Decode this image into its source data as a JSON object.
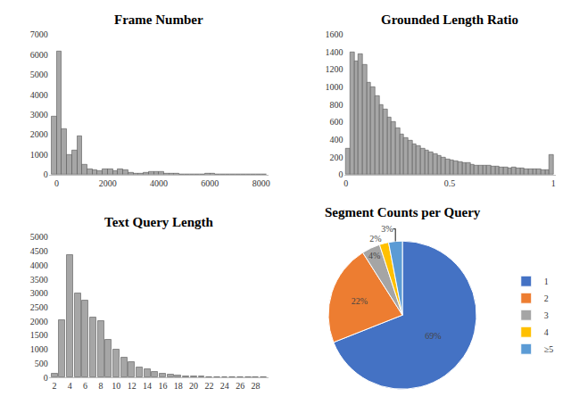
{
  "chart_data": [
    {
      "type": "histogram",
      "title": "Frame Number",
      "bins": [
        -200,
        0,
        200,
        400,
        600,
        800,
        1000,
        1200,
        1400,
        1600,
        1800,
        2000,
        2200,
        2400,
        2600,
        2800,
        3000,
        3200,
        3400,
        3600,
        3800,
        4000,
        4200,
        4400,
        4600,
        4800,
        5000,
        5200,
        5400,
        5600,
        5800,
        6000,
        6200,
        6400,
        6600,
        6800,
        7000,
        7200,
        7400,
        7600,
        7800,
        8000,
        8200
      ],
      "values": [
        2900,
        6150,
        2300,
        1000,
        1200,
        1950,
        500,
        300,
        250,
        200,
        280,
        260,
        180,
        280,
        220,
        100,
        80,
        60,
        100,
        150,
        160,
        130,
        70,
        40,
        50,
        20,
        20,
        10,
        10,
        10,
        50,
        40,
        10,
        20,
        30,
        10,
        10,
        10,
        10,
        10,
        20,
        30
      ],
      "color": "#a6a6a6",
      "xlim": [
        -300,
        8300
      ],
      "xticks": [
        0,
        2000,
        4000,
        6000,
        8000
      ],
      "ylim": [
        0,
        7000
      ],
      "yticks": [
        0,
        1000,
        2000,
        3000,
        4000,
        5000,
        6000,
        7000
      ],
      "grid": false
    },
    {
      "type": "histogram",
      "title": "Grounded Length Ratio",
      "bins": [
        0,
        0.02,
        0.04,
        0.06,
        0.08,
        0.1,
        0.12,
        0.14,
        0.16,
        0.18,
        0.2,
        0.22,
        0.24,
        0.26,
        0.28,
        0.3,
        0.32,
        0.34,
        0.36,
        0.38,
        0.4,
        0.42,
        0.44,
        0.46,
        0.48,
        0.5,
        0.52,
        0.54,
        0.56,
        0.58,
        0.6,
        0.62,
        0.64,
        0.66,
        0.68,
        0.7,
        0.72,
        0.74,
        0.76,
        0.78,
        0.8,
        0.82,
        0.84,
        0.86,
        0.88,
        0.9,
        0.92,
        0.94,
        0.96,
        0.98,
        1
      ],
      "values": [
        300,
        1400,
        1300,
        1380,
        1250,
        1050,
        1000,
        900,
        800,
        750,
        650,
        600,
        530,
        460,
        420,
        390,
        350,
        330,
        300,
        280,
        260,
        240,
        220,
        200,
        180,
        170,
        160,
        150,
        140,
        140,
        120,
        110,
        110,
        100,
        100,
        90,
        90,
        80,
        80,
        70,
        80,
        70,
        70,
        60,
        60,
        60,
        60,
        50,
        50,
        230
      ],
      "color": "#a6a6a6",
      "xlim": [
        -0.01,
        1.01
      ],
      "xticks": [
        0,
        0.5,
        1
      ],
      "ylim": [
        0,
        1600
      ],
      "yticks": [
        0,
        200,
        400,
        600,
        800,
        1000,
        1200,
        1400,
        1600
      ],
      "grid": false
    },
    {
      "type": "bar",
      "title": "Text Query Length",
      "x": [
        2,
        3,
        4,
        5,
        6,
        7,
        8,
        9,
        10,
        11,
        12,
        13,
        14,
        15,
        16,
        17,
        18,
        19,
        20,
        21,
        22,
        23,
        24,
        25,
        26,
        27,
        28,
        29
      ],
      "values": [
        150,
        2050,
        4380,
        3000,
        2750,
        2150,
        2000,
        1350,
        1000,
        700,
        550,
        350,
        300,
        200,
        150,
        100,
        80,
        50,
        40,
        30,
        20,
        15,
        10,
        10,
        5,
        5,
        5,
        5
      ],
      "color": "#a6a6a6",
      "xlim": [
        1.3,
        29.7
      ],
      "xticks": [
        2,
        4,
        6,
        8,
        10,
        12,
        14,
        16,
        18,
        20,
        22,
        24,
        26,
        28
      ],
      "ylim": [
        0,
        5000
      ],
      "yticks": [
        0,
        500,
        1000,
        1500,
        2000,
        2500,
        3000,
        3500,
        4000,
        4500,
        5000
      ],
      "grid": false
    },
    {
      "type": "pie",
      "title": "Segment Counts per Query",
      "categories": [
        "1",
        "2",
        "3",
        "4",
        "≥5"
      ],
      "values": [
        69,
        22,
        4,
        2,
        3
      ],
      "value_labels": [
        "69%",
        "22%",
        "4%",
        "2%",
        "3%"
      ],
      "colors": [
        "#4472c4",
        "#ed7d31",
        "#a5a5a5",
        "#ffc000",
        "#5b9bd5"
      ],
      "data_labels": true,
      "legend": "right"
    }
  ]
}
